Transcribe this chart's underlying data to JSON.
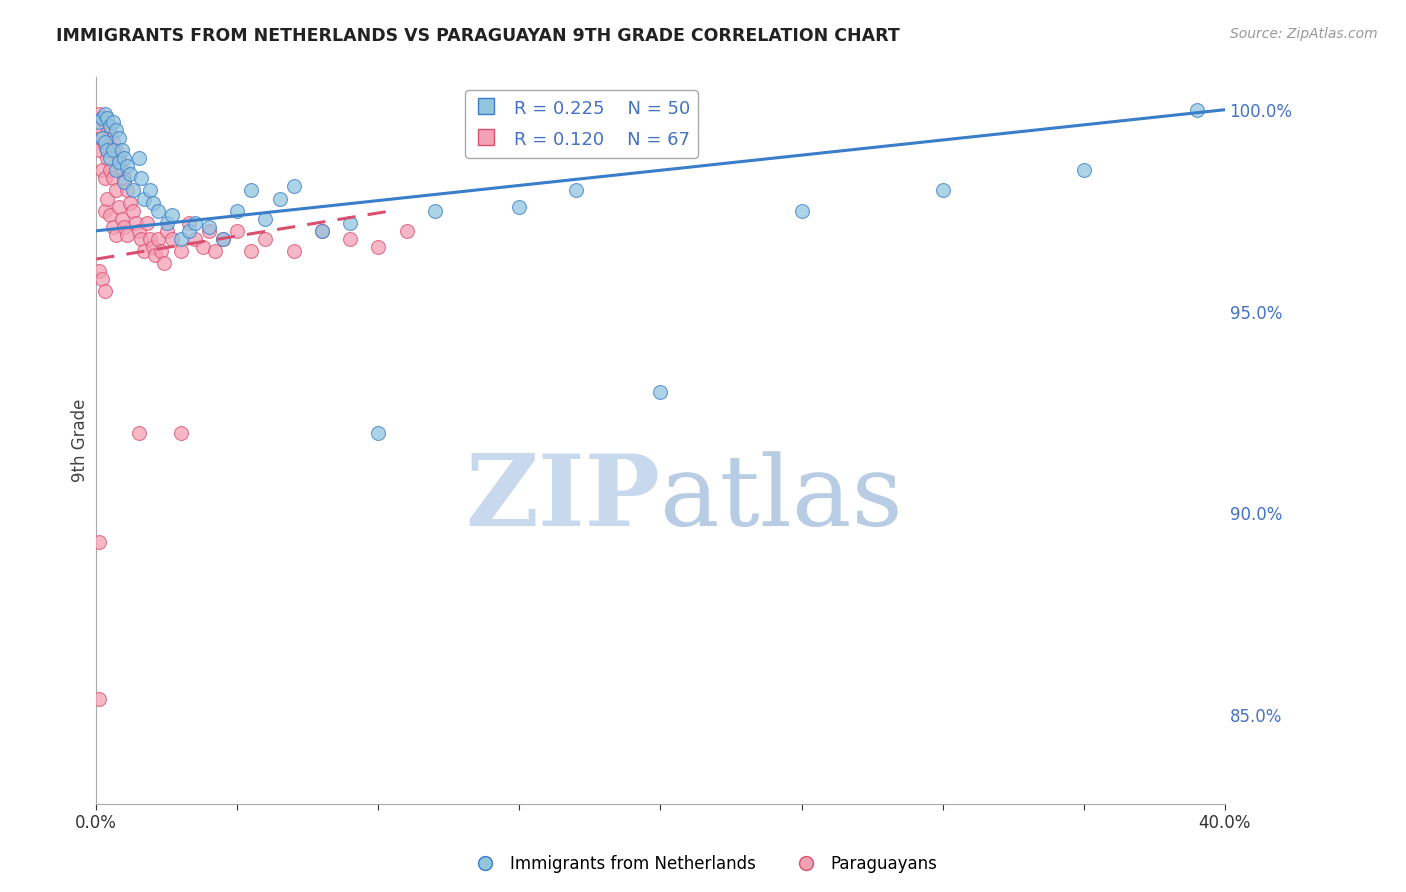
{
  "title": "IMMIGRANTS FROM NETHERLANDS VS PARAGUAYAN 9TH GRADE CORRELATION CHART",
  "source_text": "Source: ZipAtlas.com",
  "ylabel": "9th Grade",
  "x_label_blue": "Immigrants from Netherlands",
  "x_label_pink": "Paraguayans",
  "x_min": 0.0,
  "x_max": 0.4,
  "y_min": 0.828,
  "y_max": 1.008,
  "y_ticks": [
    0.85,
    0.9,
    0.95,
    1.0
  ],
  "blue_color": "#92c5de",
  "pink_color": "#f4a0b5",
  "blue_line_color": "#3a7dc9",
  "pink_line_color": "#d94f70",
  "grid_color": "#d0d0d0",
  "title_color": "#222222",
  "right_axis_color": "#4472c4",
  "watermark_zip_color": "#c8d8ed",
  "watermark_atlas_color": "#b8cce4",
  "R_blue": 0.225,
  "N_blue": 50,
  "R_pink": 0.12,
  "N_pink": 67,
  "blue_line_x": [
    0.0,
    0.4
  ],
  "blue_line_y": [
    0.97,
    1.0
  ],
  "pink_line_x": [
    0.0,
    0.105
  ],
  "pink_line_y": [
    0.963,
    0.975
  ],
  "blue_points_x": [
    0.001,
    0.002,
    0.002,
    0.003,
    0.003,
    0.004,
    0.004,
    0.005,
    0.005,
    0.006,
    0.006,
    0.007,
    0.007,
    0.008,
    0.008,
    0.009,
    0.01,
    0.01,
    0.011,
    0.012,
    0.013,
    0.015,
    0.016,
    0.017,
    0.019,
    0.02,
    0.022,
    0.025,
    0.027,
    0.03,
    0.033,
    0.035,
    0.04,
    0.045,
    0.05,
    0.055,
    0.06,
    0.065,
    0.07,
    0.08,
    0.09,
    0.1,
    0.12,
    0.15,
    0.17,
    0.2,
    0.25,
    0.3,
    0.35,
    0.39
  ],
  "blue_points_y": [
    0.997,
    0.998,
    0.993,
    0.999,
    0.992,
    0.998,
    0.99,
    0.996,
    0.988,
    0.997,
    0.99,
    0.995,
    0.985,
    0.993,
    0.987,
    0.99,
    0.988,
    0.982,
    0.986,
    0.984,
    0.98,
    0.988,
    0.983,
    0.978,
    0.98,
    0.977,
    0.975,
    0.972,
    0.974,
    0.968,
    0.97,
    0.972,
    0.971,
    0.968,
    0.975,
    0.98,
    0.973,
    0.978,
    0.981,
    0.97,
    0.972,
    0.92,
    0.975,
    0.976,
    0.98,
    0.93,
    0.975,
    0.98,
    0.985,
    1.0
  ],
  "pink_points_x": [
    0.001,
    0.001,
    0.001,
    0.002,
    0.002,
    0.002,
    0.003,
    0.003,
    0.003,
    0.003,
    0.004,
    0.004,
    0.004,
    0.005,
    0.005,
    0.005,
    0.006,
    0.006,
    0.006,
    0.007,
    0.007,
    0.007,
    0.008,
    0.008,
    0.009,
    0.009,
    0.01,
    0.01,
    0.011,
    0.011,
    0.012,
    0.013,
    0.014,
    0.015,
    0.016,
    0.017,
    0.018,
    0.019,
    0.02,
    0.021,
    0.022,
    0.023,
    0.024,
    0.025,
    0.027,
    0.03,
    0.033,
    0.035,
    0.038,
    0.04,
    0.042,
    0.045,
    0.05,
    0.055,
    0.06,
    0.07,
    0.08,
    0.09,
    0.1,
    0.11,
    0.001,
    0.002,
    0.003,
    0.015,
    0.03,
    0.001,
    0.001
  ],
  "pink_points_y": [
    0.999,
    0.996,
    0.99,
    0.998,
    0.993,
    0.985,
    0.997,
    0.991,
    0.983,
    0.975,
    0.996,
    0.988,
    0.978,
    0.994,
    0.985,
    0.974,
    0.992,
    0.983,
    0.971,
    0.99,
    0.98,
    0.969,
    0.988,
    0.976,
    0.985,
    0.973,
    0.983,
    0.971,
    0.98,
    0.969,
    0.977,
    0.975,
    0.972,
    0.97,
    0.968,
    0.965,
    0.972,
    0.968,
    0.966,
    0.964,
    0.968,
    0.965,
    0.962,
    0.97,
    0.968,
    0.965,
    0.972,
    0.968,
    0.966,
    0.97,
    0.965,
    0.968,
    0.97,
    0.965,
    0.968,
    0.965,
    0.97,
    0.968,
    0.966,
    0.97,
    0.96,
    0.958,
    0.955,
    0.92,
    0.92,
    0.893,
    0.854
  ]
}
